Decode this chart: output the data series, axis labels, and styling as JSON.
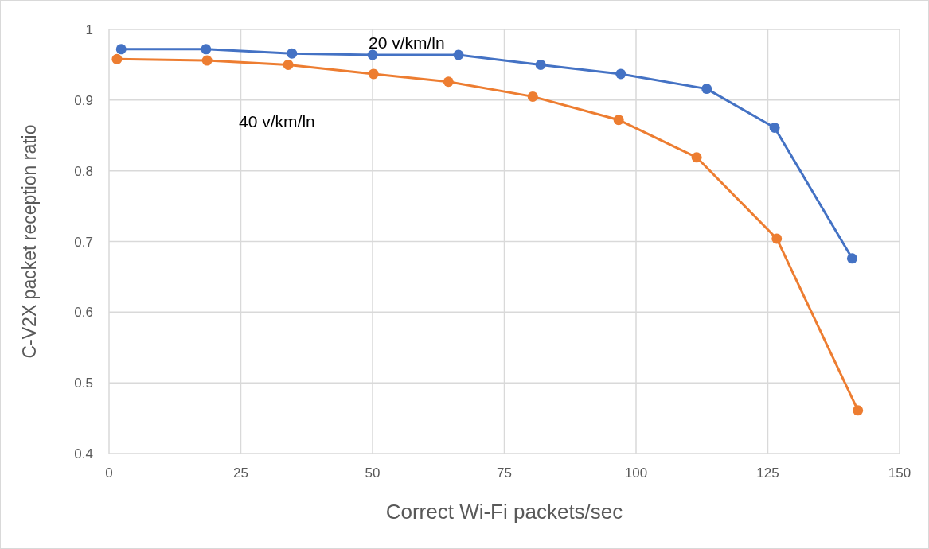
{
  "chart_data": {
    "type": "line",
    "xlabel": "Correct Wi-Fi packets/sec",
    "ylabel": "C-V2X packet reception ratio",
    "xlim": [
      0,
      150
    ],
    "xticks": [
      0,
      25,
      50,
      75,
      100,
      125,
      150
    ],
    "ylim": [
      0.4,
      1
    ],
    "yticks": [
      0.4,
      0.5,
      0.6,
      0.7,
      0.8,
      0.9,
      1
    ],
    "grid": true,
    "marker": "circle",
    "series": [
      {
        "name": "20 v/km/ln",
        "color": "#4472c4",
        "x": [
          2.3,
          18.4,
          34.7,
          50,
          66.3,
          81.9,
          97.1,
          113.4,
          126.3,
          141
        ],
        "values": [
          0.972,
          0.972,
          0.966,
          0.964,
          0.964,
          0.95,
          0.937,
          0.916,
          0.861,
          0.676
        ]
      },
      {
        "name": "40 v/km/ln",
        "color": "#ed7d31",
        "x": [
          1.5,
          18.6,
          34,
          50.2,
          64.4,
          80.4,
          96.7,
          111.5,
          126.7,
          142.1
        ],
        "values": [
          0.958,
          0.956,
          0.95,
          0.937,
          0.926,
          0.905,
          0.872,
          0.819,
          0.704,
          0.461
        ]
      }
    ]
  }
}
